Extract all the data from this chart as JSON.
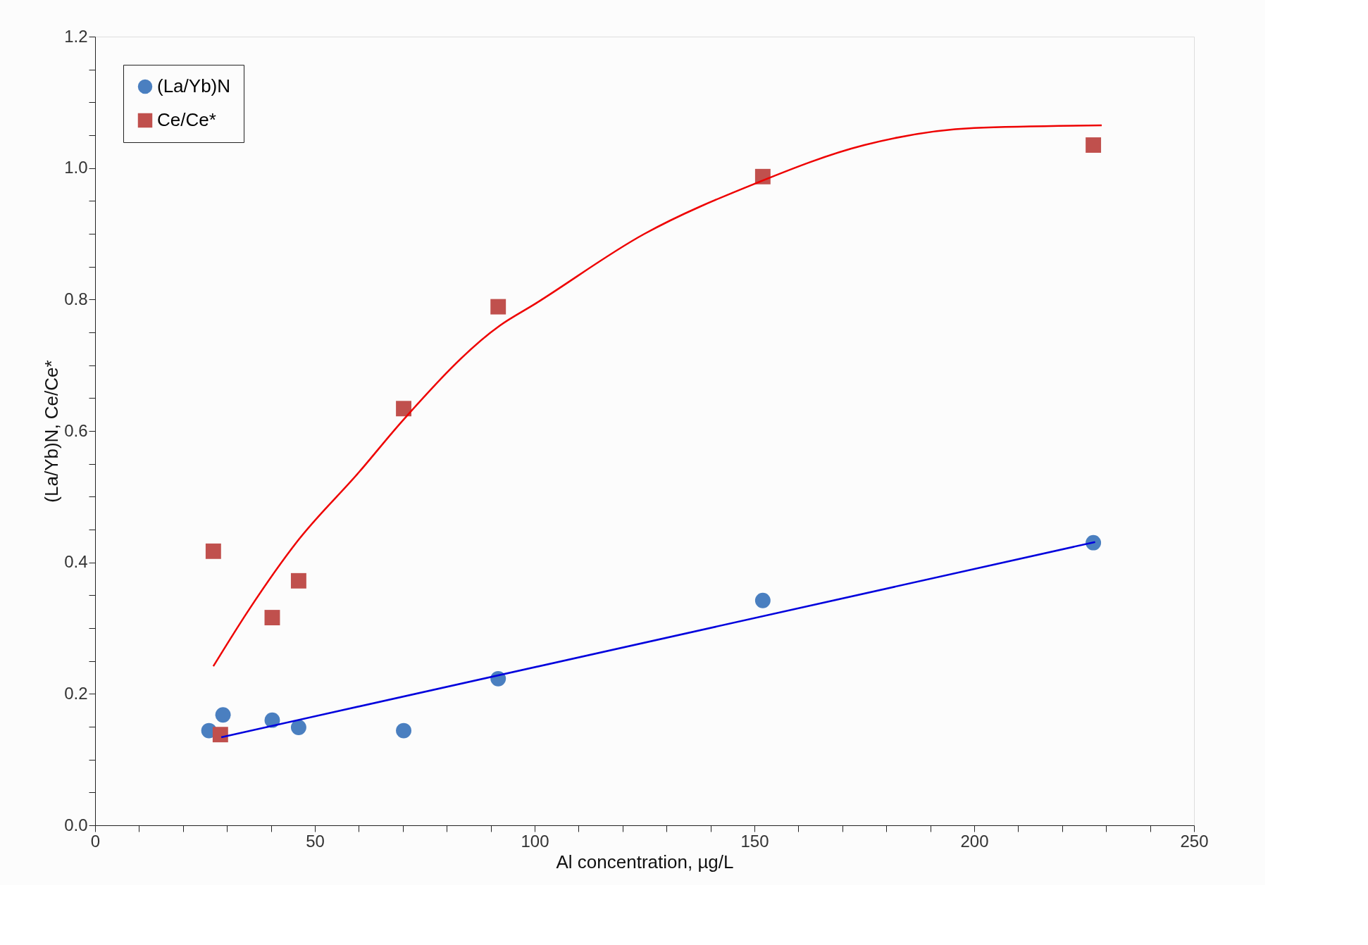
{
  "chart_data": {
    "type": "scatter",
    "xlabel": "Al concentration, µg/L",
    "ylabel": "(La/Yb)N, Ce/Ce*",
    "xlim": [
      0,
      250
    ],
    "ylim": [
      0,
      1.2
    ],
    "xticks": [
      0,
      {
        "value": 10,
        "label": null
      },
      {
        "value": 20,
        "label": null
      },
      {
        "value": 30,
        "label": null
      },
      {
        "value": 40,
        "label": null
      },
      50,
      {
        "value": 60,
        "label": null
      },
      {
        "value": 70,
        "label": null
      },
      {
        "value": 80,
        "label": null
      },
      {
        "value": 90,
        "label": null
      },
      100,
      {
        "value": 110,
        "label": null
      },
      {
        "value": 120,
        "label": null
      },
      {
        "value": 130,
        "label": null
      },
      {
        "value": 140,
        "label": null
      },
      150,
      {
        "value": 160,
        "label": null
      },
      {
        "value": 170,
        "label": null
      },
      {
        "value": 180,
        "label": null
      },
      {
        "value": 190,
        "label": null
      },
      200,
      {
        "value": 210,
        "label": null
      },
      {
        "value": 220,
        "label": null
      },
      {
        "value": 230,
        "label": null
      },
      {
        "value": 240,
        "label": null
      },
      250
    ],
    "yticks": [
      {
        "value": 0,
        "label": "0.0"
      },
      {
        "value": 0.05,
        "label": null
      },
      {
        "value": 0.1,
        "label": null
      },
      {
        "value": 0.15,
        "label": null
      },
      0.2,
      {
        "value": 0.25,
        "label": null
      },
      {
        "value": 0.3,
        "label": null
      },
      {
        "value": 0.35,
        "label": null
      },
      0.4,
      {
        "value": 0.45,
        "label": null
      },
      {
        "value": 0.5,
        "label": null
      },
      {
        "value": 0.55,
        "label": null
      },
      0.6,
      {
        "value": 0.65,
        "label": null
      },
      {
        "value": 0.7,
        "label": null
      },
      {
        "value": 0.75,
        "label": null
      },
      0.8,
      {
        "value": 0.85,
        "label": null
      },
      {
        "value": 0.9,
        "label": null
      },
      {
        "value": 0.95,
        "label": null
      },
      {
        "value": 1,
        "label": "1.0"
      },
      {
        "value": 1.05,
        "label": null
      },
      {
        "value": 1.1,
        "label": null
      },
      {
        "value": 1.15,
        "label": null
      },
      1.2
    ],
    "grid": false,
    "legend": "top left",
    "series": [
      {
        "name": "(La/Yb)N",
        "marker": "circle",
        "color": "#4a7fc0",
        "x": [
          25.9,
          29.1,
          40.3,
          46.3,
          70.2,
          91.7,
          151.9,
          227.1
        ],
        "values": [
          0.144,
          0.168,
          0.16,
          0.149,
          0.144,
          0.223,
          0.342,
          0.43
        ]
      },
      {
        "name": "Ce/Ce*",
        "marker": "square",
        "color": "#c0504d",
        "x": [
          26.9,
          28.5,
          40.3,
          46.3,
          70.2,
          91.7,
          151.9,
          227.1
        ],
        "values": [
          0.417,
          0.138,
          0.316,
          0.372,
          0.634,
          0.789,
          0.987,
          1.035
        ]
      },
      {
        "type": "line",
        "color": "#0000dd",
        "x": [
          28.7,
          227.5
        ],
        "values": [
          0.134,
          0.431
        ]
      },
      {
        "type": "line",
        "color": "#ee0000",
        "x": [
          26.9,
          35,
          46,
          60,
          70,
          92,
          100,
          125,
          150,
          175,
          200,
          229
        ],
        "values": [
          0.242,
          0.328,
          0.432,
          0.537,
          0.616,
          0.76,
          0.793,
          0.9,
          0.976,
          1.035,
          1.061,
          1.065
        ]
      }
    ]
  }
}
